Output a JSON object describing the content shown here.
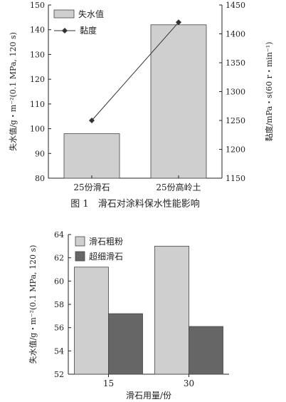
{
  "chart_data": [
    {
      "type": "bar+line",
      "caption": "图 1　滑石对涂料保水性能影响",
      "categories": [
        "25份滑石",
        "25份高岭土"
      ],
      "ylabel": "失水值/g・m⁻²(0.1 MPa, 120 s)",
      "y2label": "黏度/mPa・s(60 r・min⁻¹)",
      "ylim": [
        80,
        150
      ],
      "yticks": [
        "80",
        "90",
        "100",
        "110",
        "120",
        "130",
        "140",
        "150"
      ],
      "y2lim": [
        1150,
        1450
      ],
      "y2ticks": [
        "1150",
        "1200",
        "1250",
        "1300",
        "1350",
        "1400",
        "1450"
      ],
      "legend_position": "top-left",
      "series": [
        {
          "name": "失水值",
          "kind": "bar",
          "axis": "left",
          "values": [
            98,
            142
          ],
          "color": "#cfcfcf"
        },
        {
          "name": "黏度",
          "kind": "line",
          "axis": "right",
          "values": [
            1250,
            1420
          ],
          "color": "#333333"
        }
      ]
    },
    {
      "type": "bar",
      "categories": [
        "15",
        "30"
      ],
      "xlabel": "滑石用量/份",
      "ylabel": "失水值/g・m⁻²(0.1 MPa, 120 s)",
      "ylim": [
        52,
        64
      ],
      "yticks": [
        "52",
        "54",
        "56",
        "58",
        "60",
        "62",
        "64"
      ],
      "legend_position": "top-left",
      "series": [
        {
          "name": "滑石粗粉",
          "values": [
            61.2,
            63.0
          ],
          "color": "#cfcfcf"
        },
        {
          "name": "超细滑石",
          "values": [
            57.2,
            56.1
          ],
          "color": "#666666"
        }
      ]
    }
  ]
}
